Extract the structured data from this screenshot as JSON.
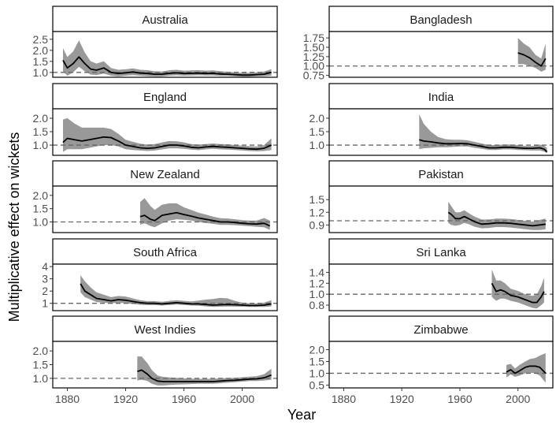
{
  "figure": {
    "ylabel": "Multiplicative effect on wickets",
    "xlabel": "Year",
    "x_ticks": [
      "1880",
      "1920",
      "1960",
      "2000"
    ]
  },
  "chart_data": {
    "type": "line",
    "description_type": "faceted smoothed line with confidence ribbon",
    "xlim": [
      1870,
      2024
    ],
    "x_ticks": [
      1880,
      1920,
      1960,
      2000
    ],
    "reference_line": 1.0,
    "colors": {
      "line": "#000000",
      "ribbon": "#999999",
      "strip_bg": "#ffffff",
      "reference": "#666666"
    },
    "panels": [
      {
        "name": "Australia",
        "ylim": [
          0.78,
          2.85
        ],
        "y_ticks": [
          1.0,
          1.5,
          2.0,
          2.5
        ],
        "y_tick_labels": [
          "1.0",
          "1.5",
          "2.0",
          "2.5"
        ],
        "x": [
          1877,
          1880,
          1884,
          1888,
          1892,
          1896,
          1900,
          1905,
          1910,
          1915,
          1920,
          1925,
          1930,
          1935,
          1940,
          1945,
          1950,
          1955,
          1960,
          1965,
          1970,
          1975,
          1980,
          1985,
          1990,
          1995,
          2000,
          2005,
          2010,
          2015,
          2020
        ],
        "y": [
          1.55,
          1.2,
          1.4,
          1.7,
          1.4,
          1.15,
          1.1,
          1.2,
          1.0,
          0.95,
          0.98,
          1.02,
          0.97,
          0.95,
          0.92,
          0.92,
          0.96,
          0.98,
          0.95,
          0.96,
          0.97,
          0.95,
          0.96,
          0.93,
          0.92,
          0.9,
          0.88,
          0.88,
          0.9,
          0.92,
          1.0
        ],
        "lower": [
          1.05,
          0.85,
          1.0,
          1.25,
          1.05,
          0.9,
          0.88,
          0.95,
          0.85,
          0.82,
          0.85,
          0.88,
          0.85,
          0.83,
          0.82,
          0.82,
          0.85,
          0.87,
          0.85,
          0.86,
          0.87,
          0.86,
          0.86,
          0.84,
          0.84,
          0.82,
          0.8,
          0.8,
          0.82,
          0.83,
          0.85
        ],
        "upper": [
          2.1,
          1.7,
          1.95,
          2.45,
          1.9,
          1.5,
          1.4,
          1.5,
          1.2,
          1.12,
          1.14,
          1.18,
          1.12,
          1.1,
          1.05,
          1.04,
          1.1,
          1.12,
          1.08,
          1.09,
          1.1,
          1.08,
          1.09,
          1.05,
          1.03,
          1.0,
          0.98,
          0.98,
          1.0,
          1.04,
          1.15
        ]
      },
      {
        "name": "Bangladesh",
        "ylim": [
          0.7,
          1.92
        ],
        "y_ticks": [
          0.75,
          1.0,
          1.25,
          1.5,
          1.75
        ],
        "y_tick_labels": [
          "0.75",
          "1.00",
          "1.25",
          "1.50",
          "1.75"
        ],
        "x": [
          2000,
          2004,
          2008,
          2012,
          2016,
          2019
        ],
        "y": [
          1.35,
          1.3,
          1.22,
          1.1,
          1.0,
          1.2
        ],
        "lower": [
          1.05,
          1.05,
          1.0,
          0.95,
          0.85,
          0.9
        ],
        "upper": [
          1.75,
          1.6,
          1.5,
          1.3,
          1.2,
          1.6
        ]
      },
      {
        "name": "England",
        "ylim": [
          0.62,
          2.35
        ],
        "y_ticks": [
          1.0,
          1.5,
          2.0
        ],
        "y_tick_labels": [
          "1.0",
          "1.5",
          "2.0"
        ],
        "x": [
          1877,
          1880,
          1885,
          1890,
          1895,
          1900,
          1905,
          1910,
          1915,
          1920,
          1925,
          1930,
          1935,
          1940,
          1945,
          1950,
          1955,
          1960,
          1965,
          1970,
          1975,
          1980,
          1985,
          1990,
          1995,
          2000,
          2005,
          2010,
          2015,
          2020
        ],
        "y": [
          1.1,
          1.25,
          1.2,
          1.15,
          1.2,
          1.25,
          1.3,
          1.28,
          1.15,
          1.0,
          0.95,
          0.9,
          0.88,
          0.9,
          0.95,
          1.0,
          1.0,
          0.97,
          0.92,
          0.9,
          0.93,
          0.95,
          0.93,
          0.92,
          0.9,
          0.88,
          0.86,
          0.85,
          0.88,
          1.0
        ],
        "lower": [
          0.75,
          0.85,
          0.85,
          0.85,
          0.9,
          0.95,
          1.0,
          1.0,
          0.95,
          0.85,
          0.82,
          0.8,
          0.78,
          0.8,
          0.84,
          0.88,
          0.88,
          0.86,
          0.83,
          0.81,
          0.84,
          0.86,
          0.84,
          0.83,
          0.82,
          0.8,
          0.78,
          0.77,
          0.78,
          0.82
        ],
        "upper": [
          1.95,
          2.0,
          1.8,
          1.65,
          1.65,
          1.65,
          1.65,
          1.6,
          1.42,
          1.2,
          1.12,
          1.05,
          1.02,
          1.04,
          1.1,
          1.15,
          1.14,
          1.1,
          1.04,
          1.02,
          1.04,
          1.06,
          1.04,
          1.03,
          1.0,
          0.98,
          0.96,
          0.95,
          1.0,
          1.25
        ]
      },
      {
        "name": "India",
        "ylim": [
          0.62,
          2.35
        ],
        "y_ticks": [
          1.0,
          1.5,
          2.0
        ],
        "y_tick_labels": [
          "1.0",
          "1.5",
          "2.0"
        ],
        "x": [
          1932,
          1935,
          1940,
          1945,
          1950,
          1955,
          1960,
          1965,
          1970,
          1975,
          1980,
          1985,
          1990,
          1995,
          2000,
          2005,
          2010,
          2015,
          2018,
          2020
        ],
        "y": [
          1.2,
          1.15,
          1.12,
          1.08,
          1.05,
          1.05,
          1.06,
          1.05,
          1.0,
          0.95,
          0.9,
          0.9,
          0.92,
          0.92,
          0.9,
          0.88,
          0.88,
          0.9,
          0.85,
          0.75
        ],
        "lower": [
          0.85,
          0.88,
          0.9,
          0.92,
          0.92,
          0.93,
          0.95,
          0.95,
          0.9,
          0.86,
          0.82,
          0.82,
          0.84,
          0.84,
          0.82,
          0.81,
          0.8,
          0.8,
          0.76,
          0.7
        ],
        "upper": [
          2.15,
          1.8,
          1.5,
          1.3,
          1.22,
          1.2,
          1.2,
          1.18,
          1.12,
          1.06,
          1.0,
          1.0,
          1.02,
          1.02,
          1.0,
          0.97,
          0.97,
          1.02,
          0.98,
          0.9
        ]
      },
      {
        "name": "New Zealand",
        "ylim": [
          0.6,
          2.35
        ],
        "y_ticks": [
          1.0,
          1.5,
          2.0
        ],
        "y_tick_labels": [
          "1.0",
          "1.5",
          "2.0"
        ],
        "x": [
          1930,
          1933,
          1937,
          1940,
          1945,
          1950,
          1955,
          1960,
          1965,
          1970,
          1975,
          1980,
          1985,
          1990,
          1995,
          2000,
          2005,
          2010,
          2015,
          2019
        ],
        "y": [
          1.2,
          1.25,
          1.1,
          1.05,
          1.25,
          1.3,
          1.35,
          1.28,
          1.22,
          1.15,
          1.1,
          1.05,
          1.0,
          1.0,
          0.98,
          0.95,
          0.93,
          0.92,
          0.95,
          0.85
        ],
        "lower": [
          0.9,
          0.95,
          0.85,
          0.8,
          0.95,
          1.05,
          1.1,
          1.08,
          1.05,
          1.0,
          0.96,
          0.93,
          0.89,
          0.89,
          0.88,
          0.86,
          0.84,
          0.82,
          0.8,
          0.7
        ],
        "upper": [
          1.75,
          1.9,
          1.6,
          1.45,
          1.65,
          1.7,
          1.7,
          1.55,
          1.45,
          1.35,
          1.28,
          1.2,
          1.14,
          1.13,
          1.1,
          1.07,
          1.05,
          1.05,
          1.15,
          1.05
        ]
      },
      {
        "name": "Pakistan",
        "ylim": [
          0.72,
          1.82
        ],
        "y_ticks": [
          0.9,
          1.2,
          1.5
        ],
        "y_tick_labels": [
          "0.9",
          "1.2",
          "1.5"
        ],
        "x": [
          1952,
          1954,
          1957,
          1960,
          1963,
          1966,
          1970,
          1975,
          1980,
          1985,
          1990,
          1995,
          2000,
          2005,
          2010,
          2015,
          2019
        ],
        "y": [
          1.2,
          1.15,
          1.05,
          1.05,
          1.1,
          1.05,
          0.98,
          0.92,
          0.93,
          0.95,
          0.95,
          0.94,
          0.92,
          0.9,
          0.88,
          0.9,
          0.92
        ],
        "lower": [
          0.95,
          0.9,
          0.88,
          0.9,
          0.95,
          0.92,
          0.86,
          0.82,
          0.83,
          0.85,
          0.85,
          0.84,
          0.82,
          0.8,
          0.78,
          0.78,
          0.8
        ],
        "upper": [
          1.45,
          1.35,
          1.2,
          1.2,
          1.25,
          1.18,
          1.1,
          1.03,
          1.03,
          1.05,
          1.05,
          1.04,
          1.02,
          1.0,
          0.98,
          1.02,
          1.05
        ]
      },
      {
        "name": "South Africa",
        "ylim": [
          0.4,
          4.2
        ],
        "y_ticks": [
          1,
          2,
          3,
          4
        ],
        "y_tick_labels": [
          "1",
          "2",
          "3",
          "4"
        ],
        "x": [
          1889,
          1892,
          1896,
          1900,
          1905,
          1910,
          1915,
          1920,
          1925,
          1930,
          1935,
          1940,
          1945,
          1950,
          1955,
          1960,
          1965,
          1970,
          1975,
          1980,
          1985,
          1990,
          1995,
          2000,
          2005,
          2010,
          2015,
          2020
        ],
        "y": [
          2.6,
          2.0,
          1.7,
          1.4,
          1.3,
          1.2,
          1.3,
          1.25,
          1.15,
          1.05,
          1.0,
          1.0,
          0.95,
          1.0,
          1.05,
          1.0,
          0.95,
          0.95,
          0.9,
          0.85,
          0.88,
          0.9,
          0.88,
          0.85,
          0.82,
          0.82,
          0.85,
          0.95
        ],
        "lower": [
          1.9,
          1.5,
          1.3,
          1.1,
          1.05,
          1.0,
          1.05,
          1.0,
          0.95,
          0.88,
          0.85,
          0.85,
          0.82,
          0.86,
          0.9,
          0.86,
          0.82,
          0.8,
          0.75,
          0.7,
          0.72,
          0.74,
          0.73,
          0.72,
          0.7,
          0.7,
          0.7,
          0.75
        ],
        "upper": [
          3.3,
          2.8,
          2.3,
          1.9,
          1.7,
          1.5,
          1.6,
          1.55,
          1.4,
          1.25,
          1.18,
          1.18,
          1.12,
          1.2,
          1.25,
          1.2,
          1.15,
          1.22,
          1.3,
          1.35,
          1.45,
          1.4,
          1.2,
          1.05,
          1.0,
          1.0,
          1.05,
          1.25
        ]
      },
      {
        "name": "Sri Lanka",
        "ylim": [
          0.7,
          1.55
        ],
        "y_ticks": [
          0.8,
          1.0,
          1.2,
          1.4
        ],
        "y_tick_labels": [
          "0.8",
          "1.0",
          "1.2",
          "1.4"
        ],
        "x": [
          1982,
          1985,
          1988,
          1991,
          1995,
          2000,
          2005,
          2010,
          2013,
          2016,
          2018
        ],
        "y": [
          1.2,
          1.05,
          1.08,
          1.05,
          0.98,
          0.95,
          0.9,
          0.85,
          0.85,
          0.95,
          1.05
        ],
        "lower": [
          0.95,
          0.88,
          0.92,
          0.92,
          0.88,
          0.85,
          0.8,
          0.75,
          0.74,
          0.8,
          0.85
        ],
        "upper": [
          1.45,
          1.25,
          1.25,
          1.2,
          1.1,
          1.06,
          1.0,
          0.97,
          1.0,
          1.15,
          1.3
        ]
      },
      {
        "name": "West Indies",
        "ylim": [
          0.65,
          2.35
        ],
        "y_ticks": [
          1.0,
          1.5,
          2.0
        ],
        "y_tick_labels": [
          "1.0",
          "1.5",
          "2.0"
        ],
        "x": [
          1928,
          1931,
          1935,
          1938,
          1942,
          1946,
          1950,
          1955,
          1960,
          1965,
          1970,
          1975,
          1980,
          1985,
          1990,
          1995,
          2000,
          2005,
          2010,
          2015,
          2020
        ],
        "y": [
          1.25,
          1.3,
          1.15,
          1.0,
          0.9,
          0.88,
          0.88,
          0.88,
          0.88,
          0.88,
          0.88,
          0.88,
          0.88,
          0.9,
          0.92,
          0.93,
          0.95,
          0.97,
          0.98,
          1.02,
          1.12
        ],
        "lower": [
          0.92,
          0.95,
          0.9,
          0.8,
          0.74,
          0.74,
          0.76,
          0.77,
          0.78,
          0.79,
          0.8,
          0.8,
          0.8,
          0.82,
          0.84,
          0.86,
          0.88,
          0.9,
          0.9,
          0.92,
          0.95
        ],
        "upper": [
          1.8,
          1.8,
          1.55,
          1.3,
          1.1,
          1.05,
          1.03,
          1.02,
          1.0,
          0.99,
          0.98,
          0.98,
          0.98,
          1.0,
          1.01,
          1.02,
          1.04,
          1.06,
          1.08,
          1.15,
          1.35
        ]
      },
      {
        "name": "Zimbabwe",
        "ylim": [
          0.38,
          2.35
        ],
        "y_ticks": [
          0.5,
          1.0,
          1.5,
          2.0
        ],
        "y_tick_labels": [
          "0.5",
          "1.0",
          "1.5",
          "2.0"
        ],
        "x": [
          1992,
          1995,
          1998,
          2001,
          2005,
          2008,
          2012,
          2015,
          2019
        ],
        "y": [
          1.05,
          1.15,
          1.0,
          1.1,
          1.25,
          1.3,
          1.3,
          1.25,
          1.0
        ],
        "lower": [
          0.82,
          0.95,
          0.85,
          0.9,
          1.0,
          1.02,
          1.0,
          0.9,
          0.6
        ],
        "upper": [
          1.35,
          1.4,
          1.2,
          1.35,
          1.5,
          1.6,
          1.65,
          1.75,
          1.85
        ]
      }
    ]
  }
}
